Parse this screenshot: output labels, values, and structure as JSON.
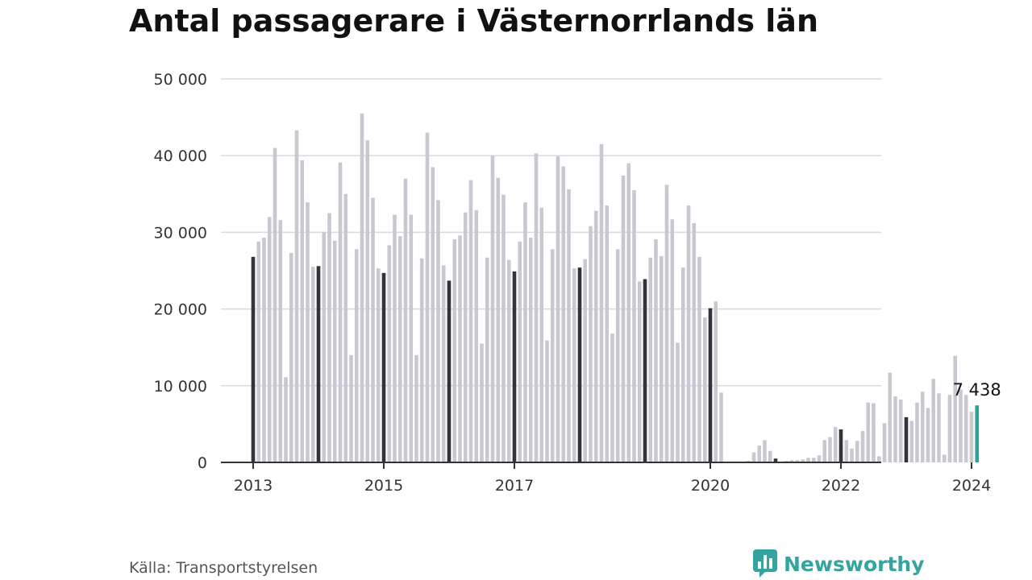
{
  "chart_data": {
    "type": "bar",
    "title": "Antal passagerare i Västernorrlands län",
    "xlabel": "",
    "ylabel": "",
    "ylim": [
      0,
      50000
    ],
    "yticks": [
      0,
      10000,
      20000,
      30000,
      40000,
      50000
    ],
    "ytick_labels": [
      "0",
      "10 000",
      "20 000",
      "30 000",
      "40 000",
      "50 000"
    ],
    "xticks": [
      {
        "label": "2013",
        "index": 0
      },
      {
        "label": "2015",
        "index": 24
      },
      {
        "label": "2017",
        "index": 48
      },
      {
        "label": "2020",
        "index": 84
      },
      {
        "label": "2022",
        "index": 108
      },
      {
        "label": "2024",
        "index": 132
      }
    ],
    "grid": true,
    "start": "2013-01",
    "end": "2024-01",
    "frequency": "monthly",
    "values": [
      26800,
      28800,
      29300,
      32000,
      41000,
      31600,
      11100,
      27300,
      43300,
      39400,
      33900,
      25500,
      25600,
      30000,
      32500,
      28900,
      39100,
      35000,
      14000,
      27800,
      45500,
      42000,
      34500,
      25300,
      24700,
      28300,
      32300,
      29500,
      37000,
      32300,
      14000,
      26600,
      43000,
      38500,
      34200,
      25700,
      23700,
      29100,
      29600,
      32600,
      36800,
      32900,
      15500,
      26700,
      40000,
      37100,
      34900,
      26400,
      24900,
      28800,
      33900,
      29300,
      40300,
      33200,
      15900,
      27800,
      39900,
      38600,
      35600,
      25300,
      25400,
      26500,
      30800,
      32800,
      41500,
      33500,
      16800,
      27800,
      37400,
      39000,
      35500,
      23600,
      23900,
      26700,
      29100,
      26900,
      36200,
      31700,
      15600,
      25400,
      33500,
      31200,
      26800,
      18900,
      20100,
      21000,
      9100,
      0,
      0,
      0,
      0,
      200,
      1300,
      2200,
      2900,
      1500,
      500,
      100,
      200,
      300,
      300,
      400,
      600,
      600,
      900,
      2900,
      3300,
      4600,
      4300,
      2900,
      1800,
      2800,
      4100,
      7800,
      7700,
      800,
      5100,
      11700,
      8600,
      8200,
      5900,
      5400,
      7800,
      9200,
      7100,
      10900,
      9000,
      1000,
      8800,
      13900,
      9500,
      8800,
      6600,
      7438
    ],
    "highlighted_indices": [
      0,
      12,
      24,
      36,
      48,
      60,
      72,
      84,
      96,
      108,
      120
    ],
    "last_value": 7438,
    "last_value_label": "7 438",
    "colors": {
      "bar": "#c9c8d0",
      "january": "#33323d",
      "latest": "#2aa39e",
      "grid": "#d9d9de",
      "axis": "#333333"
    }
  },
  "footer": {
    "source": "Källa: Transportstyrelsen",
    "brand": "Newsworthy",
    "brand_icon": "newsworthy-logo-icon",
    "brand_color": "#35a49f"
  }
}
